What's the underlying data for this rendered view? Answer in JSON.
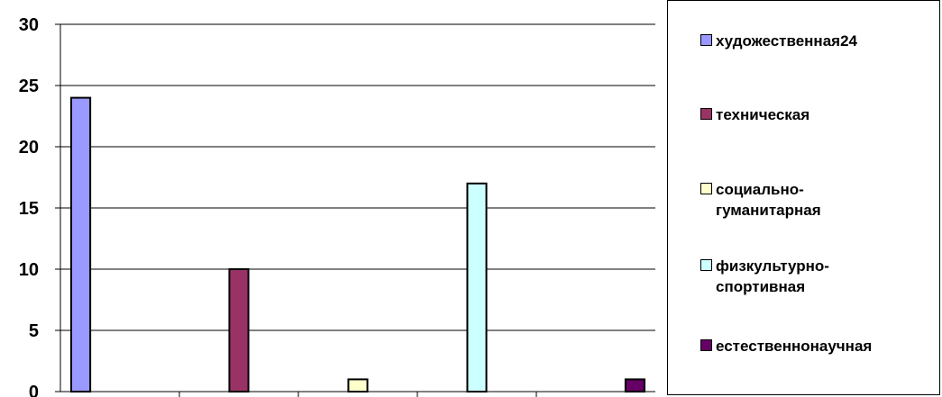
{
  "chart_data": {
    "type": "bar",
    "categories": [
      "художественная24",
      "техническая",
      "социально-\nгуманитарная",
      "физкультурно-\nспортивная",
      "естественнонаучная"
    ],
    "values": [
      24,
      10,
      1,
      17,
      1
    ],
    "colors": [
      "#9999ff",
      "#993366",
      "#ffffcc",
      "#ccffff",
      "#660066"
    ],
    "y_ticks": [
      "0",
      "5",
      "10",
      "15",
      "20",
      "25",
      "30"
    ],
    "ylim": [
      0,
      30
    ],
    "grid": true,
    "legend_position": "right"
  }
}
